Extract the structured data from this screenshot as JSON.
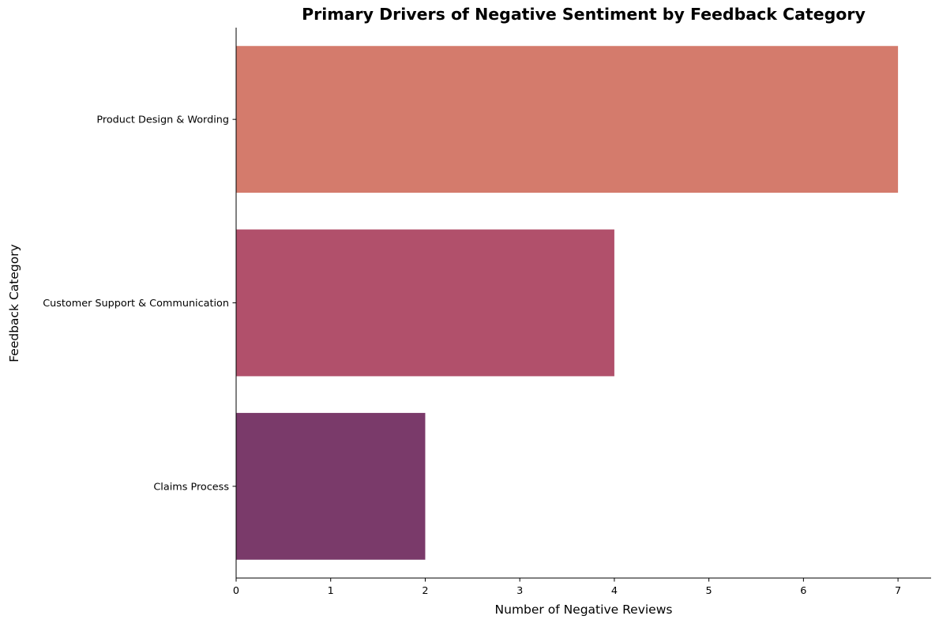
{
  "chart_data": {
    "type": "bar",
    "orientation": "horizontal",
    "title": "Primary Drivers of Negative Sentiment by Feedback Category",
    "xlabel": "Number of Negative Reviews",
    "ylabel": "Feedback Category",
    "categories": [
      "Product Design & Wording",
      "Customer Support & Communication",
      "Claims Process"
    ],
    "values": [
      7,
      4,
      2
    ],
    "colors": [
      "#d47b6c",
      "#b1506b",
      "#7a3a6a"
    ],
    "xlim": [
      0,
      7.35
    ],
    "xticks": [
      0,
      1,
      2,
      3,
      4,
      5,
      6,
      7
    ],
    "grid": false,
    "legend": "none"
  }
}
